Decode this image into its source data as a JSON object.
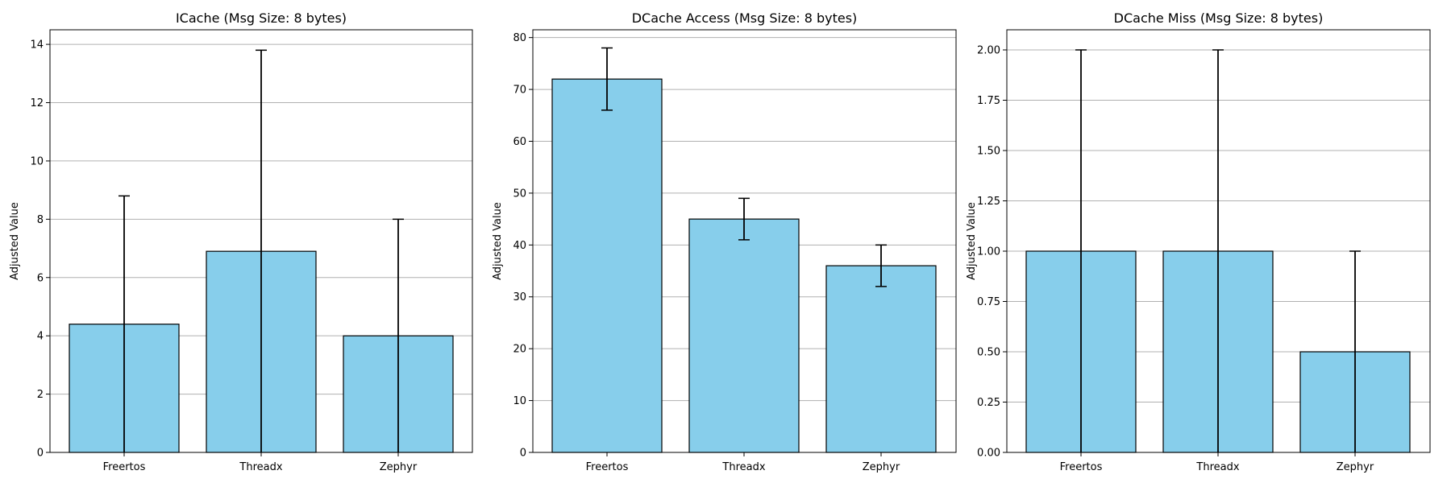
{
  "style": {
    "bar_color": "#87ceeb",
    "bar_edge": "#000000",
    "grid_color": "#b0b0b0"
  },
  "chart_data": [
    {
      "type": "bar",
      "title": "ICache (Msg Size: 8 bytes)",
      "ylabel": "Adjusted Value",
      "xlabel": "",
      "categories": [
        "Freertos",
        "Threadx",
        "Zephyr"
      ],
      "values": [
        4.4,
        6.9,
        4.0
      ],
      "error_low": [
        0.0,
        0.0,
        0.0
      ],
      "error_high": [
        8.8,
        13.8,
        8.0
      ],
      "ylim": [
        0,
        14.5
      ],
      "yticks": [
        0,
        2,
        4,
        6,
        8,
        10,
        12,
        14
      ],
      "ytick_labels": [
        "0",
        "2",
        "4",
        "6",
        "8",
        "10",
        "12",
        "14"
      ],
      "grid": "y"
    },
    {
      "type": "bar",
      "title": "DCache Access (Msg Size: 8 bytes)",
      "ylabel": "Adjusted Value",
      "xlabel": "",
      "categories": [
        "Freertos",
        "Threadx",
        "Zephyr"
      ],
      "values": [
        72,
        45,
        36
      ],
      "error_low": [
        66,
        41,
        32
      ],
      "error_high": [
        78,
        49,
        40
      ],
      "ylim": [
        0,
        81.5
      ],
      "yticks": [
        0,
        10,
        20,
        30,
        40,
        50,
        60,
        70,
        80
      ],
      "ytick_labels": [
        "0",
        "10",
        "20",
        "30",
        "40",
        "50",
        "60",
        "70",
        "80"
      ],
      "grid": "y"
    },
    {
      "type": "bar",
      "title": "DCache Miss (Msg Size: 8 bytes)",
      "ylabel": "Adjusted Value",
      "xlabel": "",
      "categories": [
        "Freertos",
        "Threadx",
        "Zephyr"
      ],
      "values": [
        1.0,
        1.0,
        0.5
      ],
      "error_low": [
        0.0,
        0.0,
        0.0
      ],
      "error_high": [
        2.0,
        2.0,
        1.0
      ],
      "ylim": [
        0,
        2.1
      ],
      "yticks": [
        0,
        0.25,
        0.5,
        0.75,
        1.0,
        1.25,
        1.5,
        1.75,
        2.0
      ],
      "ytick_labels": [
        "0.00",
        "0.25",
        "0.50",
        "0.75",
        "1.00",
        "1.25",
        "1.50",
        "1.75",
        "2.00"
      ],
      "grid": "y"
    }
  ]
}
